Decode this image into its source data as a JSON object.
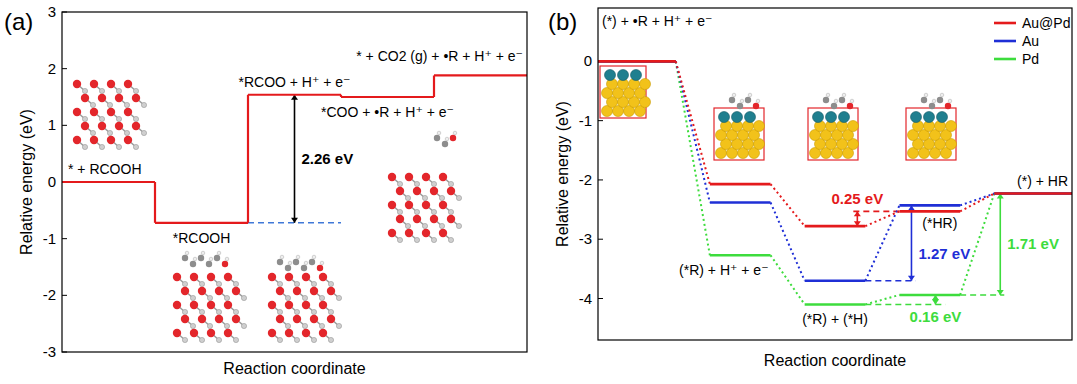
{
  "chart_data": [
    {
      "type": "energy_profile",
      "title": "(a)",
      "x_label": "Reaction coordinate",
      "y_label": "Relative energy (eV)",
      "categories": [
        "* + RCOOH",
        "*RCOOH",
        "*RCOO + H⁺ + e⁻",
        "*COO + •R + H⁺ + e⁻",
        "* + CO2 (g) + •R + H⁺ + e⁻"
      ],
      "series": [
        {
          "color": "#e41a1c",
          "values": [
            0,
            -0.72,
            1.54,
            1.5,
            1.88
          ]
        }
      ],
      "annotations": [
        {
          "label": "2.26 eV",
          "value": 2.26
        }
      ],
      "ylim": [
        -3,
        3
      ],
      "yticks": [
        -3,
        -2,
        -1,
        0,
        1,
        2,
        3
      ],
      "grid": false,
      "tick_labels": "y",
      "line_style": "solid"
    },
    {
      "type": "energy_profile",
      "title": "(b)",
      "x_label": "Reaction coordinate",
      "y_label": "Relative energy (eV)",
      "categories": [
        "(*) + •R + H⁺ + e⁻",
        "(*R) + H⁺ + e⁻",
        "(*R) + (*H)",
        "(*HR)",
        "(*) + HR"
      ],
      "series": [
        {
          "name": "Au@Pd",
          "color": "#e41a1c",
          "values": [
            0,
            -2.07,
            -2.78,
            -2.53,
            -2.23
          ],
          "annotations": [
            {
              "label": "0.25 eV",
              "value": 0.25
            }
          ]
        },
        {
          "name": "Au",
          "color": "#1f2fd6",
          "values": [
            0,
            -2.38,
            -3.7,
            -2.43,
            -2.23
          ],
          "annotations": [
            {
              "label": "1.27 eV",
              "value": 1.27
            }
          ]
        },
        {
          "name": "Pd",
          "color": "#3ddc3d",
          "values": [
            0,
            -3.27,
            -4.1,
            -3.94,
            -2.23
          ],
          "annotations": [
            {
              "label": "0.16 eV",
              "value": 0.16
            },
            {
              "label": "1.71 eV",
              "value": 1.71
            }
          ]
        }
      ],
      "ylim": [
        -4.7,
        0.9
      ],
      "yticks": [
        -4,
        -3,
        -2,
        -1,
        0
      ],
      "grid": false,
      "tick_labels": "y",
      "legend": "upper right",
      "line_style": "dotted"
    }
  ]
}
